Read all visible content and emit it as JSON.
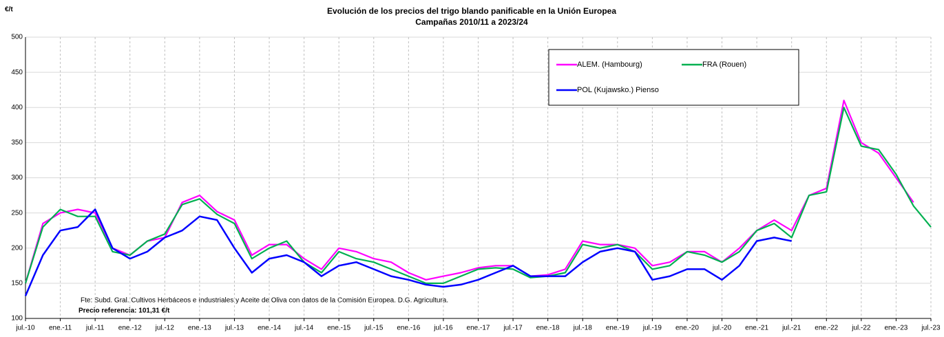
{
  "chart_data": {
    "type": "line",
    "title": "Evolución de los precios del trigo blando panificable en la Unión Europea",
    "subtitle": "Campañas 2010/11 a 2023/24",
    "y_label": "€/t",
    "annotations": [
      "Fte: Subd. Gral. Cultivos Herbáceos e Industriales y Aceite de Oliva con datos de la Comisión Europea. D.G. Agricultura.",
      "Precio referencia: 101,31 €/t"
    ],
    "categories": [
      "jul.-10",
      null,
      "ene.-11",
      null,
      "jul.-11",
      null,
      "ene.-12",
      null,
      "jul.-12",
      null,
      "ene.-13",
      null,
      "jul.-13",
      null,
      "ene.-14",
      null,
      "jul.-14",
      null,
      "ene.-15",
      null,
      "jul.-15",
      null,
      "ene.-16",
      null,
      "jul.-16",
      null,
      "ene.-17",
      null,
      "jul.-17",
      null,
      "ene.-18",
      null,
      "jul.-18",
      null,
      "ene.-19",
      null,
      "jul.-19",
      null,
      "ene.-20",
      null,
      "jul.-20",
      null,
      "ene.-21",
      null,
      "jul.-21",
      null,
      "ene.-22",
      null,
      "jul.-22",
      null,
      "ene.-23",
      null,
      "jul.-23"
    ],
    "series": [
      {
        "name": "ALEM. (Hambourg)",
        "color": "#ff00ff",
        "values": [
          150,
          235,
          250,
          255,
          250,
          200,
          190,
          210,
          215,
          265,
          275,
          252,
          240,
          190,
          205,
          205,
          185,
          170,
          200,
          195,
          185,
          180,
          165,
          155,
          160,
          165,
          172,
          175,
          175,
          160,
          162,
          170,
          210,
          205,
          205,
          200,
          175,
          180,
          195,
          195,
          180,
          200,
          225,
          240,
          225,
          275,
          285,
          410,
          350,
          335,
          300,
          265,
          null
        ]
      },
      {
        "name": "FRA (Rouen)",
        "color": "#00b050",
        "values": [
          150,
          230,
          255,
          245,
          245,
          195,
          190,
          210,
          220,
          262,
          270,
          248,
          235,
          185,
          200,
          210,
          180,
          165,
          195,
          185,
          180,
          170,
          160,
          150,
          150,
          160,
          170,
          172,
          170,
          158,
          160,
          165,
          205,
          200,
          205,
          195,
          170,
          175,
          195,
          190,
          180,
          195,
          225,
          235,
          215,
          275,
          280,
          400,
          345,
          340,
          305,
          260,
          230
        ]
      },
      {
        "name": "POL (Kujawsko.) Pienso",
        "color": "#0000ff",
        "values": [
          132,
          190,
          225,
          230,
          255,
          200,
          185,
          195,
          215,
          225,
          245,
          240,
          200,
          165,
          185,
          190,
          180,
          160,
          175,
          180,
          170,
          160,
          155,
          148,
          145,
          148,
          155,
          165,
          175,
          160,
          160,
          160,
          180,
          195,
          200,
          195,
          155,
          160,
          170,
          170,
          155,
          175,
          210,
          215,
          210,
          null,
          null,
          null,
          null,
          null,
          null,
          null,
          null
        ]
      }
    ],
    "ylim": [
      100,
      500
    ],
    "yticks": [
      100,
      150,
      200,
      250,
      300,
      350,
      400,
      450,
      500
    ],
    "grid": true
  }
}
